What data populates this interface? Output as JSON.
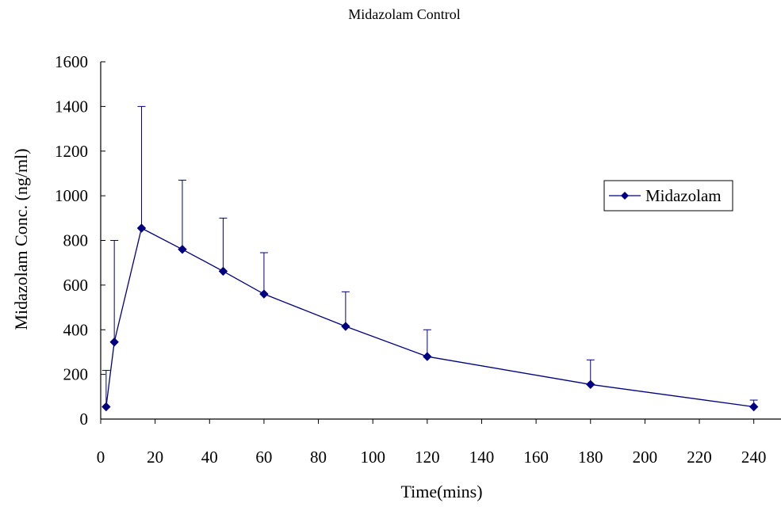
{
  "chart_data": {
    "type": "line",
    "title": "Midazolam Control",
    "xlabel": "Time(mins)",
    "ylabel": "Midazolam Conc. (ng/ml)",
    "xlim": [
      0,
      250
    ],
    "ylim": [
      0,
      1600
    ],
    "x_ticks": [
      0,
      20,
      40,
      60,
      80,
      100,
      120,
      140,
      160,
      180,
      200,
      220,
      240
    ],
    "y_ticks": [
      0,
      200,
      400,
      600,
      800,
      1000,
      1200,
      1400,
      1600
    ],
    "grid": false,
    "legend_position": "right",
    "colors": {
      "series": "#000080",
      "axis": "#000000"
    },
    "series": [
      {
        "name": "Midazolam",
        "marker": "diamond",
        "x": [
          2,
          5,
          15,
          30,
          45,
          60,
          90,
          120,
          180,
          240
        ],
        "y": [
          55,
          345,
          855,
          760,
          662,
          560,
          415,
          280,
          155,
          55
        ],
        "error_upper": [
          218,
          800,
          1400,
          1070,
          900,
          745,
          570,
          400,
          265,
          85
        ]
      }
    ]
  }
}
